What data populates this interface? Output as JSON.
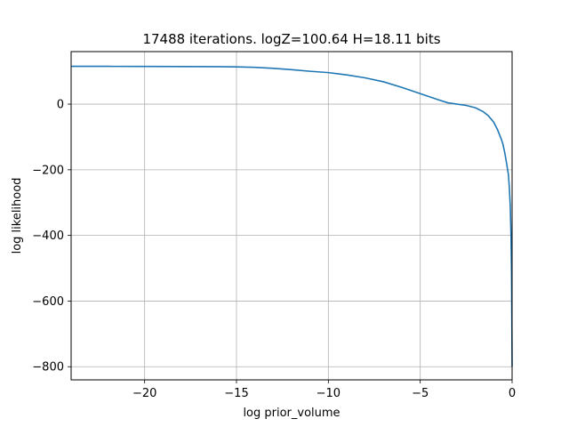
{
  "chart_data": {
    "type": "line",
    "title": "17488 iterations. logZ=100.64 H=18.11 bits",
    "xlabel": "log prior_volume",
    "ylabel": "log likelihood",
    "xlim": [
      -24,
      0
    ],
    "ylim": [
      -840,
      160
    ],
    "xticks": [
      -20,
      -15,
      -10,
      -5,
      0
    ],
    "yticks": [
      -800,
      -600,
      -400,
      -200,
      0
    ],
    "xtick_labels": [
      "−20",
      "−15",
      "−10",
      "−5",
      "0"
    ],
    "ytick_labels": [
      "−800",
      "−600",
      "−400",
      "−200",
      "0"
    ],
    "grid": true,
    "series": [
      {
        "color": "#1f77b4",
        "x": [
          -24,
          -22,
          -20,
          -18,
          -16,
          -15,
          -14,
          -13,
          -12,
          -11,
          -10,
          -9,
          -8,
          -7,
          -6,
          -5,
          -4,
          -3.5,
          -3,
          -2.5,
          -2,
          -1.6,
          -1.3,
          -1,
          -0.8,
          -0.6,
          -0.5,
          -0.4,
          -0.3,
          -0.2,
          -0.15,
          -0.1,
          -0.06,
          -0.03,
          0
        ],
        "y": [
          115,
          115,
          114.8,
          114.5,
          114,
          113.5,
          112,
          109,
          105,
          100,
          96,
          89,
          80,
          68,
          51,
          32,
          13,
          4,
          0,
          -4,
          -11,
          -22,
          -35,
          -55,
          -77,
          -105,
          -122,
          -148,
          -180,
          -215,
          -255,
          -310,
          -400,
          -520,
          -800
        ]
      }
    ]
  }
}
